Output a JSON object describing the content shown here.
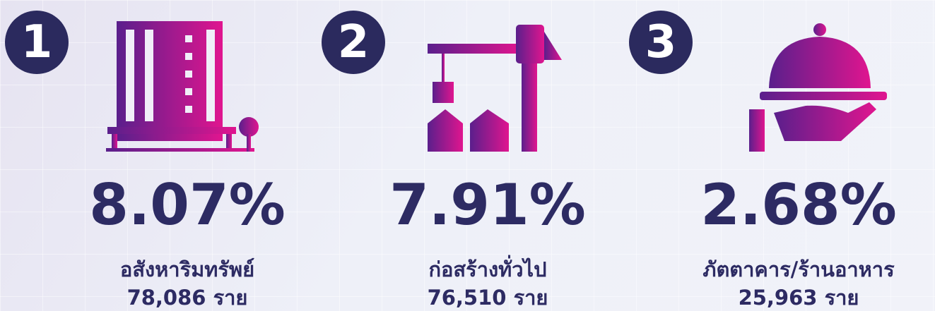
{
  "items": [
    {
      "rank": "1",
      "percent": "8.07%",
      "name": "อสังหาริมทรัพย์",
      "count": "78,086 ราย"
    },
    {
      "rank": "2",
      "percent": "7.91%",
      "name": "ก่อสร้างทั่วไป",
      "count": "76,510 ราย"
    },
    {
      "rank": "3",
      "percent": "2.68%",
      "name": "ภัตตาคาร/ร้านอาหาร",
      "count": "25,963 ราย"
    }
  ]
}
